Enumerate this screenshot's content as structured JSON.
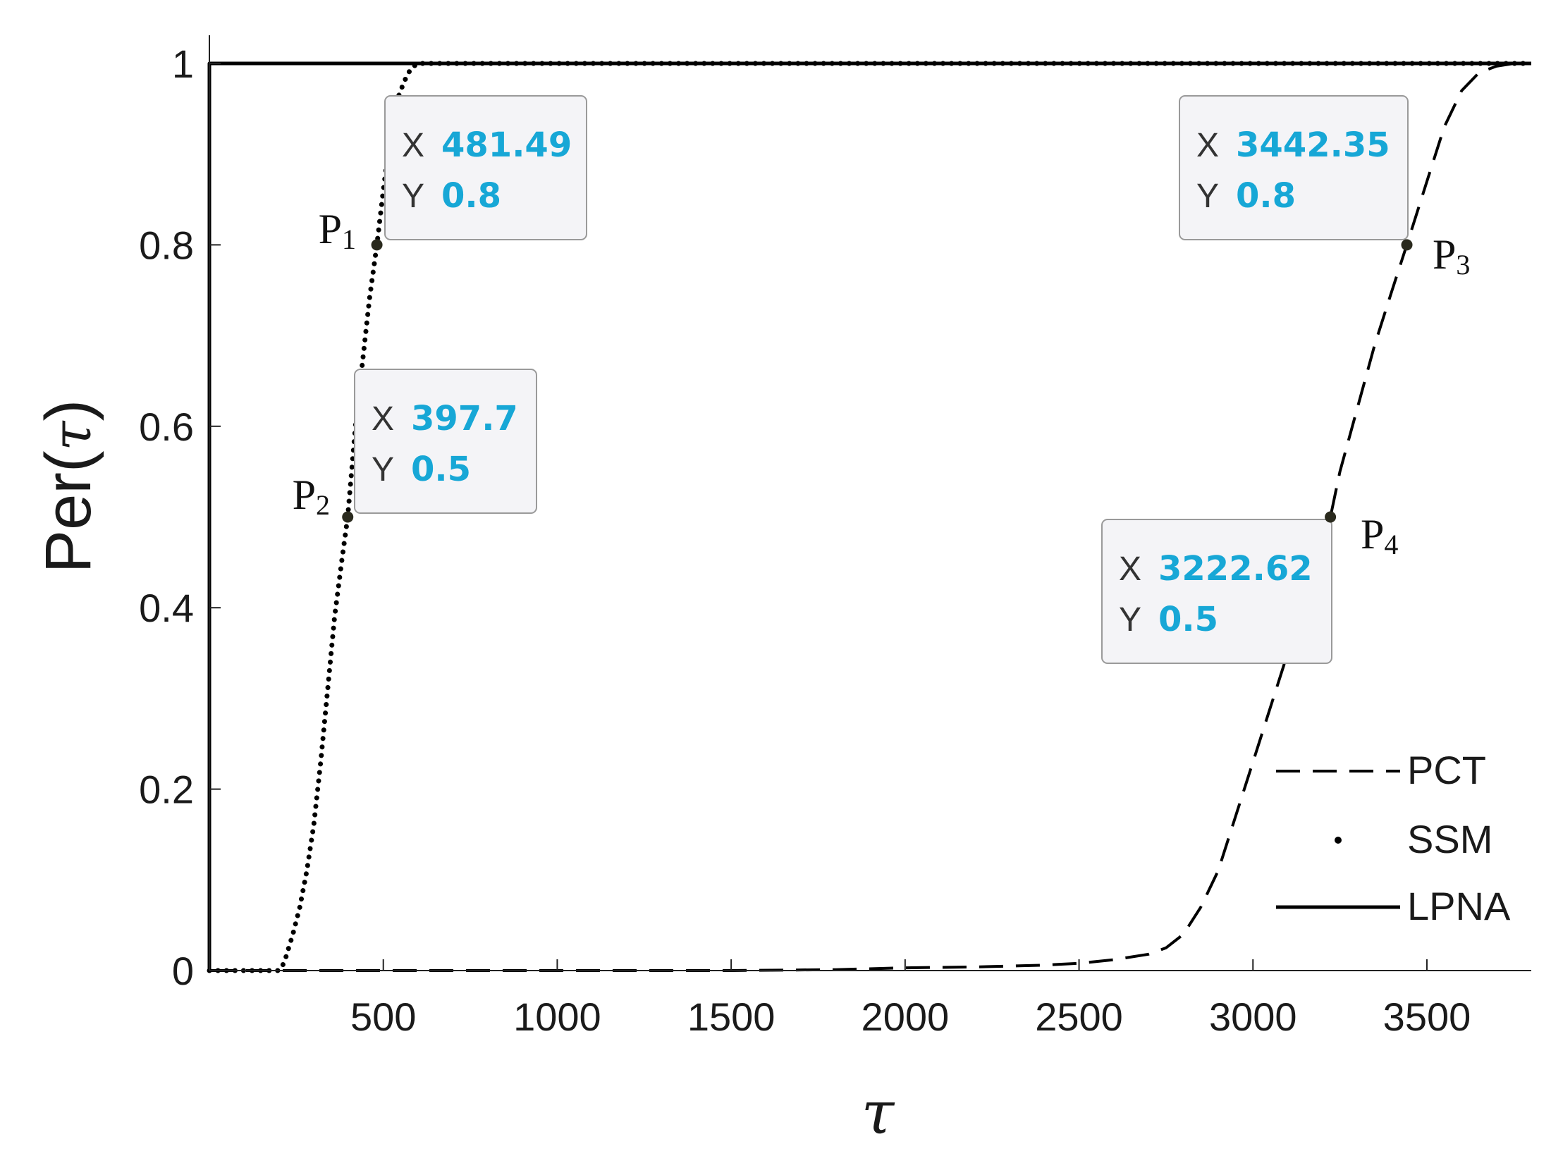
{
  "chart_data": {
    "type": "line",
    "title": "",
    "xlabel": "τ",
    "ylabel": {
      "prefix": "Per(",
      "symbol": "τ",
      "suffix": ")"
    },
    "xlim": [
      0,
      3800
    ],
    "ylim": [
      0,
      1
    ],
    "x_ticks": [
      500,
      1000,
      1500,
      2000,
      2500,
      3000,
      3500
    ],
    "y_ticks": [
      0,
      0.2,
      0.4,
      0.6,
      0.8,
      1
    ],
    "x_tick_labels": [
      "500",
      "1000",
      "1500",
      "2000",
      "2500",
      "3000",
      "3500"
    ],
    "y_tick_labels": [
      "0",
      "0.2",
      "0.4",
      "0.6",
      "0.8",
      "1"
    ],
    "grid": false,
    "legend_position": "bottom-right",
    "series": [
      {
        "name": "PCT",
        "style": "dashed",
        "color": "#000000",
        "x": [
          0,
          500,
          1000,
          1500,
          1800,
          2000,
          2200,
          2400,
          2500,
          2600,
          2700,
          2750,
          2800,
          2850,
          2900,
          2950,
          3000,
          3050,
          3100,
          3150,
          3200,
          3222.62,
          3250,
          3300,
          3350,
          3400,
          3442.35,
          3500,
          3550,
          3600,
          3650,
          3700,
          3750,
          3800
        ],
        "y": [
          0,
          0,
          0,
          0,
          0.001,
          0.003,
          0.004,
          0.006,
          0.008,
          0.012,
          0.018,
          0.025,
          0.04,
          0.07,
          0.11,
          0.17,
          0.23,
          0.29,
          0.35,
          0.41,
          0.47,
          0.5,
          0.55,
          0.62,
          0.69,
          0.75,
          0.8,
          0.87,
          0.93,
          0.97,
          0.99,
          0.997,
          1,
          1
        ]
      },
      {
        "name": "SSM",
        "style": "dotted",
        "color": "#000000",
        "x": [
          0,
          200,
          210,
          220,
          240,
          260,
          280,
          300,
          320,
          340,
          360,
          380,
          397.7,
          420,
          440,
          460,
          481.49,
          500,
          520,
          540,
          560,
          580,
          600,
          620,
          700,
          1000,
          2000,
          3000,
          3800
        ],
        "y": [
          0,
          0,
          0.005,
          0.015,
          0.04,
          0.07,
          0.11,
          0.16,
          0.23,
          0.31,
          0.39,
          0.45,
          0.5,
          0.6,
          0.67,
          0.74,
          0.8,
          0.86,
          0.92,
          0.96,
          0.98,
          0.995,
          1,
          1,
          1,
          1,
          1,
          1,
          1
        ]
      },
      {
        "name": "LPNA",
        "style": "solid",
        "color": "#000000",
        "x": [
          0,
          0,
          3800
        ],
        "y": [
          0,
          1,
          1
        ]
      }
    ],
    "annotations": [
      {
        "label": "P",
        "sub": "1",
        "x": 481.49,
        "y": 0.8,
        "x_text": "481.49",
        "y_text": "0.8"
      },
      {
        "label": "P",
        "sub": "2",
        "x": 397.7,
        "y": 0.5,
        "x_text": "397.7",
        "y_text": "0.5"
      },
      {
        "label": "P",
        "sub": "3",
        "x": 3442.35,
        "y": 0.8,
        "x_text": "3442.35",
        "y_text": "0.8"
      },
      {
        "label": "P",
        "sub": "4",
        "x": 3222.62,
        "y": 0.5,
        "x_text": "3222.62",
        "y_text": "0.5"
      }
    ],
    "datatip_keys": {
      "x": "X",
      "y": "Y"
    },
    "colors": {
      "datatip_value": "#17a7d6",
      "datatip_bg": "#f4f4f7",
      "datatip_border": "#9a9a9a"
    }
  }
}
